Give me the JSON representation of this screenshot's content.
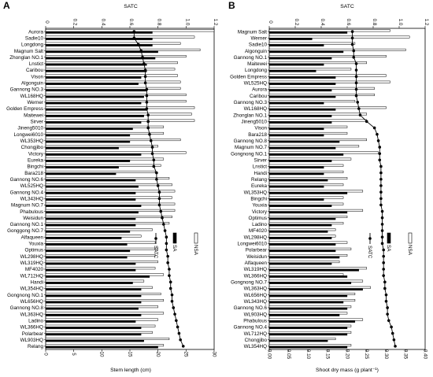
{
  "chart_data": [
    {
      "panel_label": "A",
      "type": "bar",
      "top_axis_title": "SATC",
      "xlabel": "Stem length  (cm)",
      "xlim": [
        0,
        30
      ],
      "x_ticks": [
        "0",
        "5",
        "10",
        "15",
        "20",
        "25",
        "30"
      ],
      "top_ticks": [
        "0",
        "0.2",
        "0.4",
        "0.6",
        "0.8",
        "1.0",
        "1.2"
      ],
      "top_lim": [
        0,
        1.2
      ],
      "legend": [
        "NSA",
        "SA",
        "SATC"
      ],
      "legend_placement": "right, vertical",
      "categories": [
        "Aurora",
        "Sadie10",
        "Longdong",
        "Magnum Salt",
        "Zhonglan NO.1",
        "Lnstict",
        "Caribou",
        "Vison",
        "Algonguin",
        "Gannong NO.3",
        "WL168HQ",
        "Werner",
        "Golden Empress",
        "Maitewei",
        "Sirver",
        "Jineng5010",
        "Longwei6010",
        "WL353HQ",
        "Chongjibo",
        "Victory",
        "Eureka",
        "Bingchi",
        "Bara218",
        "Gannong NO.6",
        "WL525HQ",
        "Gannong NO.4",
        "WL343HQ",
        "Magnum NO.7",
        "Phabulous",
        "Weisidun",
        "Gannong NO.1",
        "Gonggong NO.7",
        "Alfaqueen",
        "Youxia",
        "Optimus",
        "WL298HQ",
        "WL319HQ",
        "MF4020",
        "WL712HQ",
        "Handi",
        "WL354HQ",
        "Gongnong NO.1",
        "WL656HQ",
        "Gannong NO.8",
        "WL363HQ",
        "Ladino",
        "WL366HQ",
        "Polarbear",
        "WL903HQ",
        "Relang"
      ],
      "series": [
        {
          "name": "NSA",
          "values": [
            30,
            26.5,
            24,
            27.5,
            25,
            23.5,
            23,
            23.5,
            24,
            24,
            25,
            25,
            26.5,
            26,
            26.5,
            21,
            21,
            24,
            20,
            25,
            21,
            20.5,
            19.5,
            22,
            22.5,
            23,
            22.5,
            23,
            23,
            22.5,
            22,
            19,
            17,
            19.5,
            20,
            19.5,
            20,
            19.5,
            21,
            17.5,
            19,
            20.5,
            21,
            20,
            21,
            20,
            19.5,
            19,
            22,
            21
          ]
        },
        {
          "name": "SA",
          "values": [
            19,
            19,
            19,
            20,
            19.5,
            18,
            18,
            17,
            16.5,
            18,
            17.5,
            17,
            18,
            17.5,
            17,
            15.5,
            15,
            15,
            13,
            17,
            15,
            13,
            12.5,
            16,
            16.5,
            16,
            16,
            17,
            16.5,
            16,
            16,
            15,
            13.5,
            14.5,
            15,
            14.5,
            16,
            16,
            18.5,
            15.5,
            17,
            17,
            17,
            16.5,
            17,
            16,
            17,
            17,
            17.5,
            20
          ]
        },
        {
          "name": "SATC",
          "values": [
            0.63,
            0.63,
            0.66,
            0.68,
            0.69,
            0.7,
            0.71,
            0.71,
            0.71,
            0.72,
            0.72,
            0.72,
            0.72,
            0.73,
            0.73,
            0.73,
            0.74,
            0.75,
            0.76,
            0.76,
            0.77,
            0.77,
            0.79,
            0.79,
            0.8,
            0.81,
            0.81,
            0.81,
            0.82,
            0.83,
            0.84,
            0.85,
            0.86,
            0.86,
            0.86,
            0.87,
            0.87,
            0.88,
            0.88,
            0.89,
            0.89,
            0.9,
            0.9,
            0.91,
            0.92,
            0.93,
            0.94,
            0.95,
            0.96,
            0.98
          ]
        }
      ]
    },
    {
      "panel_label": "B",
      "type": "bar",
      "top_axis_title": "SATC",
      "xlabel": "Shoot dry mass (g plant⁻¹)",
      "xlim": [
        0,
        0.4
      ],
      "x_ticks": [
        "0.00",
        "0.05",
        "0.10",
        "0.15",
        "0.20",
        "0.25",
        "0.30",
        "0.35",
        "0.40"
      ],
      "top_ticks": [
        "0",
        "0.2",
        "0.4",
        "0.6",
        "0.8",
        "1.0",
        "1.2"
      ],
      "top_lim": [
        0,
        1.2
      ],
      "legend": [
        "NSA",
        "SA",
        "SATC"
      ],
      "legend_placement": "right, vertical",
      "categories": [
        "Magnum Salt",
        "Werner",
        "Sadie10",
        "Algonguin",
        "Gannong NO.1",
        "Maitewei",
        "Longdong",
        "Golden Empress",
        "WL525HQ",
        "Aurora",
        "Caribou",
        "Gannong NO.3",
        "WL168HQ",
        "Zhonglan NO.1",
        "Jineng5010",
        "Vison",
        "Bara218",
        "Gannong NO.8",
        "Magnum NO.7",
        "Gongnong NO.1",
        "Sirver",
        "Lnstict",
        "Handi",
        "Relang",
        "Eureka",
        "WL353HQ",
        "Bingchi",
        "Youxia",
        "Victory",
        "Optimus",
        "Ladino",
        "MF4020",
        "WL298HQ",
        "Longwei6010",
        "Polarbear",
        "Weisidun",
        "Alfaqueen",
        "WL319HQ",
        "WL366HQ",
        "Gongnong NO.7",
        "WL363HQ",
        "WL656HQ",
        "WL343HQ",
        "Gannong NO.6",
        "WL903HQ",
        "Phabulous",
        "Gannong NO.4",
        "WL712HQ",
        "Chongjibo",
        "WL354HQ"
      ],
      "series": [
        {
          "name": "NSA",
          "values": [
            0.31,
            0.36,
            0.22,
            0.35,
            0.3,
            0.25,
            0.21,
            0.3,
            0.31,
            0.27,
            0.27,
            0.22,
            0.3,
            0.25,
            0.25,
            0.2,
            0.2,
            0.25,
            0.23,
            0.28,
            0.21,
            0.19,
            0.19,
            0.2,
            0.19,
            0.24,
            0.19,
            0.19,
            0.24,
            0.2,
            0.19,
            0.17,
            0.17,
            0.2,
            0.21,
            0.2,
            0.18,
            0.25,
            0.19,
            0.24,
            0.26,
            0.22,
            0.22,
            0.21,
            0.2,
            0.24,
            0.21,
            0.21,
            0.17,
            0.21
          ]
        },
        {
          "name": "SA",
          "values": [
            0.2,
            0.11,
            0.14,
            0.19,
            0.16,
            0.14,
            0.12,
            0.17,
            0.17,
            0.16,
            0.17,
            0.14,
            0.17,
            0.16,
            0.16,
            0.14,
            0.14,
            0.18,
            0.17,
            0.19,
            0.16,
            0.14,
            0.14,
            0.15,
            0.14,
            0.2,
            0.14,
            0.16,
            0.2,
            0.17,
            0.16,
            0.15,
            0.16,
            0.17,
            0.17,
            0.18,
            0.16,
            0.23,
            0.2,
            0.21,
            0.24,
            0.2,
            0.19,
            0.2,
            0.18,
            0.22,
            0.2,
            0.2,
            0.15,
            0.2
          ]
        },
        {
          "name": "SATC",
          "values": [
            0.64,
            0.64,
            0.64,
            0.65,
            0.65,
            0.67,
            0.67,
            0.67,
            0.67,
            0.67,
            0.67,
            0.68,
            0.69,
            0.7,
            0.75,
            0.81,
            0.83,
            0.84,
            0.85,
            0.85,
            0.85,
            0.86,
            0.86,
            0.86,
            0.86,
            0.86,
            0.86,
            0.86,
            0.87,
            0.87,
            0.87,
            0.87,
            0.87,
            0.87,
            0.88,
            0.88,
            0.88,
            0.88,
            0.88,
            0.89,
            0.89,
            0.9,
            0.9,
            0.91,
            0.91,
            0.92,
            0.94,
            0.95,
            0.96,
            0.97
          ]
        }
      ]
    }
  ]
}
